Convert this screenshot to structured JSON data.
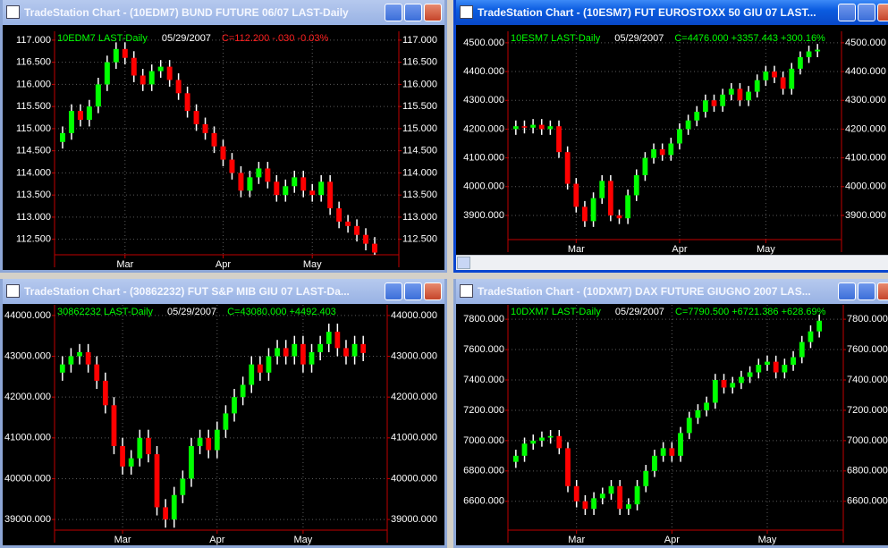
{
  "chart_data": [
    {
      "type": "candlestick",
      "window_title": "TradeStation Chart - (10EDM7) BUND FUTURE 06/07 LAST-Daily",
      "active": false,
      "scrollbar": false,
      "header": {
        "symbol": "10EDM7 LAST-Daily",
        "date": "05/29/2007",
        "quote": "C=112.200 -.030 -0.03%"
      },
      "quote_color": "#ff2020",
      "up_color": "#00ff00",
      "down_color": "#ff0000",
      "wick_color": "#ffffff",
      "grid": true,
      "categories": [
        null,
        null,
        null,
        null,
        null,
        null,
        null,
        "Mar",
        null,
        null,
        null,
        null,
        null,
        null,
        null,
        null,
        null,
        null,
        "Apr",
        null,
        null,
        null,
        null,
        null,
        null,
        null,
        null,
        null,
        "May",
        null,
        null,
        null,
        null,
        null,
        null,
        null
      ],
      "open": [
        114.7,
        114.9,
        115.4,
        115.2,
        115.5,
        116.0,
        116.5,
        116.8,
        116.6,
        116.2,
        116.0,
        116.3,
        116.4,
        116.1,
        115.8,
        115.4,
        115.1,
        114.9,
        114.6,
        114.3,
        114.0,
        113.6,
        113.9,
        114.1,
        113.8,
        113.5,
        113.7,
        113.9,
        113.6,
        113.5,
        113.8,
        113.2,
        112.9,
        112.8,
        112.6,
        112.4
      ],
      "high": [
        115.05,
        115.55,
        115.55,
        115.65,
        116.15,
        116.65,
        116.95,
        116.95,
        116.75,
        116.35,
        116.45,
        116.55,
        116.55,
        116.25,
        115.95,
        115.55,
        115.25,
        115.05,
        114.75,
        114.45,
        114.15,
        114.05,
        114.25,
        114.25,
        113.95,
        113.85,
        114.05,
        114.05,
        113.75,
        113.95,
        113.95,
        113.35,
        113.05,
        112.95,
        112.75,
        112.55
      ],
      "low": [
        114.55,
        114.75,
        115.05,
        115.05,
        115.35,
        115.85,
        116.35,
        116.45,
        116.05,
        115.85,
        115.85,
        116.15,
        115.95,
        115.65,
        115.25,
        114.95,
        114.75,
        114.45,
        114.15,
        113.85,
        113.45,
        113.45,
        113.75,
        113.65,
        113.35,
        113.35,
        113.55,
        113.45,
        113.35,
        113.35,
        113.05,
        112.75,
        112.65,
        112.45,
        112.25,
        112.15
      ],
      "close": [
        114.9,
        115.4,
        115.2,
        115.5,
        116.0,
        116.5,
        116.8,
        116.6,
        116.2,
        116.0,
        116.3,
        116.4,
        116.1,
        115.8,
        115.4,
        115.1,
        114.9,
        114.6,
        114.3,
        114.0,
        113.6,
        113.9,
        114.1,
        113.8,
        113.5,
        113.7,
        113.9,
        113.6,
        113.5,
        113.8,
        113.2,
        112.9,
        112.8,
        112.6,
        112.4,
        112.2
      ],
      "ylim": [
        112.15,
        117.2
      ],
      "yticks": [
        {
          "value": 112.5,
          "label": "112.500"
        },
        {
          "value": 113,
          "label": "113.000"
        },
        {
          "value": 113.5,
          "label": "113.500"
        },
        {
          "value": 114,
          "label": "114.000"
        },
        {
          "value": 114.5,
          "label": "114.500"
        },
        {
          "value": 115,
          "label": "115.000"
        },
        {
          "value": 115.5,
          "label": "115.500"
        },
        {
          "value": 116,
          "label": "116.000"
        },
        {
          "value": 116.5,
          "label": "116.500"
        },
        {
          "value": 117,
          "label": "117.000"
        }
      ]
    },
    {
      "type": "candlestick",
      "window_title": "TradeStation Chart - (10ESM7) FUT EUROSTOXX 50  GIU 07 LAST...",
      "active": true,
      "scrollbar": true,
      "header": {
        "symbol": "10ESM7 LAST-Daily",
        "date": "05/29/2007",
        "quote": "C=4476.000 +3357.443 +300.16%"
      },
      "quote_color": "#00ff00",
      "up_color": "#00ff00",
      "down_color": "#ff0000",
      "wick_color": "#ffffff",
      "grid": true,
      "categories": [
        null,
        null,
        null,
        null,
        null,
        null,
        null,
        "Mar",
        null,
        null,
        null,
        null,
        null,
        null,
        null,
        null,
        null,
        null,
        null,
        "Apr",
        null,
        null,
        null,
        null,
        null,
        null,
        null,
        null,
        null,
        "May",
        null,
        null,
        null,
        null,
        null,
        null
      ],
      "open": [
        4200,
        4210,
        4205,
        4215,
        4200,
        4210,
        4120,
        4010,
        3930,
        3880,
        3960,
        4020,
        3900,
        3890,
        3970,
        4040,
        4100,
        4130,
        4110,
        4150,
        4200,
        4230,
        4260,
        4300,
        4280,
        4320,
        4340,
        4300,
        4330,
        4370,
        4400,
        4380,
        4340,
        4410,
        4450,
        4470
      ],
      "high": [
        4230,
        4230,
        4235,
        4235,
        4230,
        4230,
        4140,
        4030,
        3950,
        3980,
        4040,
        4040,
        3920,
        3990,
        4060,
        4120,
        4150,
        4150,
        4170,
        4220,
        4250,
        4280,
        4320,
        4320,
        4340,
        4360,
        4360,
        4350,
        4390,
        4420,
        4420,
        4400,
        4430,
        4470,
        4490,
        4496
      ],
      "low": [
        4180,
        4185,
        4185,
        4180,
        4180,
        4100,
        3990,
        3910,
        3860,
        3860,
        3940,
        3880,
        3870,
        3870,
        3950,
        4020,
        4080,
        4090,
        4090,
        4130,
        4180,
        4210,
        4240,
        4260,
        4260,
        4300,
        4280,
        4280,
        4310,
        4350,
        4360,
        4320,
        4320,
        4390,
        4430,
        4450
      ],
      "close": [
        4210,
        4205,
        4215,
        4200,
        4210,
        4120,
        4010,
        3930,
        3880,
        3960,
        4020,
        3900,
        3890,
        3970,
        4040,
        4100,
        4130,
        4110,
        4150,
        4200,
        4230,
        4260,
        4300,
        4280,
        4320,
        4340,
        4300,
        4330,
        4370,
        4400,
        4380,
        4340,
        4410,
        4450,
        4470,
        4476
      ],
      "ylim": [
        3816,
        4540
      ],
      "yticks": [
        {
          "value": 3900,
          "label": "3900.000"
        },
        {
          "value": 4000,
          "label": "4000.000"
        },
        {
          "value": 4100,
          "label": "4100.000"
        },
        {
          "value": 4200,
          "label": "4200.000"
        },
        {
          "value": 4300,
          "label": "4300.000"
        },
        {
          "value": 4400,
          "label": "4400.000"
        },
        {
          "value": 4500,
          "label": "4500.000"
        }
      ]
    },
    {
      "type": "candlestick",
      "window_title": "TradeStation Chart - (30862232) FUT S&P MIB GIU 07 LAST-Da...",
      "active": false,
      "scrollbar": false,
      "header": {
        "symbol": "30862232 LAST-Daily",
        "date": "05/29/2007",
        "quote": "C=43080.000 +4492.403"
      },
      "quote_color": "#00ff00",
      "up_color": "#00ff00",
      "down_color": "#ff0000",
      "wick_color": "#ffffff",
      "grid": true,
      "categories": [
        null,
        null,
        null,
        null,
        null,
        null,
        null,
        "Mar",
        null,
        null,
        null,
        null,
        null,
        null,
        null,
        null,
        null,
        null,
        "Apr",
        null,
        null,
        null,
        null,
        null,
        null,
        null,
        null,
        null,
        "May",
        null,
        null,
        null,
        null,
        null,
        null,
        null
      ],
      "open": [
        42600,
        42800,
        43000,
        43100,
        42800,
        42400,
        41800,
        40800,
        40300,
        40500,
        41000,
        40600,
        39300,
        39000,
        39600,
        40000,
        40800,
        41000,
        40700,
        41200,
        41600,
        42000,
        42300,
        42800,
        42600,
        43000,
        43200,
        43000,
        43300,
        42800,
        43100,
        43300,
        43600,
        43200,
        43000,
        43300
      ],
      "high": [
        43000,
        43200,
        43300,
        43300,
        43000,
        42600,
        42000,
        41000,
        40700,
        41200,
        41200,
        40800,
        39500,
        39800,
        40200,
        41000,
        41200,
        41200,
        41400,
        41800,
        42200,
        42500,
        43000,
        43000,
        43200,
        43400,
        43400,
        43500,
        43500,
        43300,
        43500,
        43800,
        43800,
        43400,
        43500,
        43500
      ],
      "low": [
        42400,
        42600,
        42800,
        42600,
        42200,
        41600,
        40600,
        40100,
        40100,
        40300,
        40400,
        39100,
        38800,
        38800,
        39400,
        39800,
        40600,
        40500,
        40500,
        41000,
        41400,
        41800,
        42100,
        42400,
        42400,
        42800,
        42800,
        42800,
        42600,
        42600,
        42900,
        43100,
        43000,
        42800,
        42800,
        42880
      ],
      "close": [
        42800,
        43000,
        43100,
        42800,
        42400,
        41800,
        40800,
        40300,
        40500,
        41000,
        40600,
        39300,
        39000,
        39600,
        40000,
        40800,
        41000,
        40700,
        41200,
        41600,
        42000,
        42300,
        42800,
        42600,
        43000,
        43200,
        43000,
        43300,
        42800,
        43100,
        43300,
        43600,
        43200,
        43000,
        43300,
        43080
      ],
      "ylim": [
        38740,
        44260
      ],
      "yticks": [
        {
          "value": 39000,
          "label": "39000.000"
        },
        {
          "value": 40000,
          "label": "40000.000"
        },
        {
          "value": 41000,
          "label": "41000.000"
        },
        {
          "value": 42000,
          "label": "42000.000"
        },
        {
          "value": 43000,
          "label": "43000.000"
        },
        {
          "value": 44000,
          "label": "44000.000"
        }
      ]
    },
    {
      "type": "candlestick",
      "window_title": "TradeStation Chart - (10DXM7) DAX FUTURE GIUGNO 2007 LAS...",
      "active": false,
      "scrollbar": false,
      "header": {
        "symbol": "10DXM7 LAST-Daily",
        "date": "05/29/2007",
        "quote": "C=7790.500 +6721.386 +628.69%"
      },
      "quote_color": "#00ff00",
      "up_color": "#00ff00",
      "down_color": "#ff0000",
      "wick_color": "#ffffff",
      "grid": true,
      "categories": [
        null,
        null,
        null,
        null,
        null,
        null,
        null,
        "Mar",
        null,
        null,
        null,
        null,
        null,
        null,
        null,
        null,
        null,
        null,
        "Apr",
        null,
        null,
        null,
        null,
        null,
        null,
        null,
        null,
        null,
        null,
        "May",
        null,
        null,
        null,
        null,
        null,
        null
      ],
      "open": [
        6860,
        6900,
        6980,
        7000,
        7020,
        7030,
        6950,
        6700,
        6600,
        6550,
        6620,
        6650,
        6700,
        6550,
        6580,
        6700,
        6800,
        6900,
        6950,
        6900,
        7050,
        7150,
        7200,
        7250,
        7400,
        7350,
        7380,
        7420,
        7450,
        7500,
        7520,
        7450,
        7500,
        7550,
        7650,
        7720
      ],
      "high": [
        6940,
        7020,
        7040,
        7060,
        7070,
        7070,
        6990,
        6740,
        6640,
        6660,
        6690,
        6740,
        6740,
        6620,
        6740,
        6840,
        6940,
        6990,
        6990,
        7090,
        7190,
        7240,
        7290,
        7440,
        7440,
        7420,
        7460,
        7490,
        7540,
        7560,
        7560,
        7540,
        7590,
        7690,
        7760,
        7830.5
      ],
      "low": [
        6820,
        6860,
        6940,
        6960,
        6980,
        6910,
        6660,
        6560,
        6510,
        6510,
        6580,
        6610,
        6510,
        6510,
        6540,
        6660,
        6760,
        6860,
        6860,
        6860,
        7010,
        7110,
        7160,
        7210,
        7310,
        7310,
        7340,
        7380,
        7410,
        7460,
        7410,
        7410,
        7460,
        7510,
        7610,
        7680
      ],
      "close": [
        6900,
        6980,
        7000,
        7020,
        7030,
        6950,
        6700,
        6600,
        6550,
        6620,
        6650,
        6700,
        6550,
        6580,
        6700,
        6800,
        6900,
        6950,
        6900,
        7050,
        7150,
        7200,
        7250,
        7400,
        7350,
        7380,
        7420,
        7450,
        7500,
        7520,
        7450,
        7500,
        7550,
        7650,
        7720,
        7790.5
      ],
      "ylim": [
        6410,
        7895
      ],
      "yticks": [
        {
          "value": 6600,
          "label": "6600.000"
        },
        {
          "value": 6800,
          "label": "6800.000"
        },
        {
          "value": 7000,
          "label": "7000.000"
        },
        {
          "value": 7200,
          "label": "7200.000"
        },
        {
          "value": 7400,
          "label": "7400.000"
        },
        {
          "value": 7600,
          "label": "7600.000"
        },
        {
          "value": 7800,
          "label": "7800.000"
        }
      ]
    }
  ]
}
